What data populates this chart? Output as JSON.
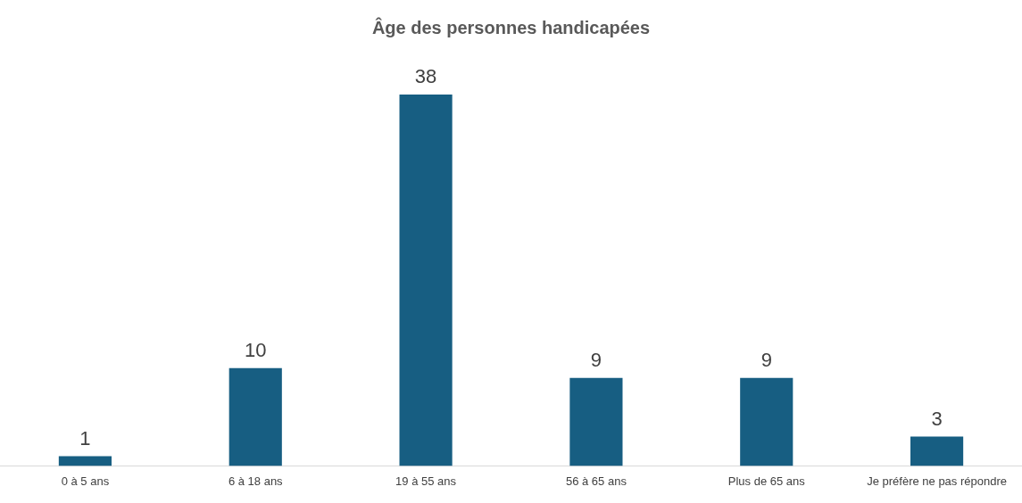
{
  "chart_data": {
    "type": "bar",
    "title": "Âge des personnes handicapées",
    "categories": [
      "0 à 5 ans",
      "6 à 18 ans",
      "19 à 55 ans",
      "56 à 65 ans",
      "Plus de 65 ans",
      "Je préfère ne pas répondre"
    ],
    "values": [
      1,
      10,
      38,
      9,
      9,
      3
    ],
    "color": "#175e82",
    "data_labels": true,
    "grid": false,
    "legend": false
  }
}
